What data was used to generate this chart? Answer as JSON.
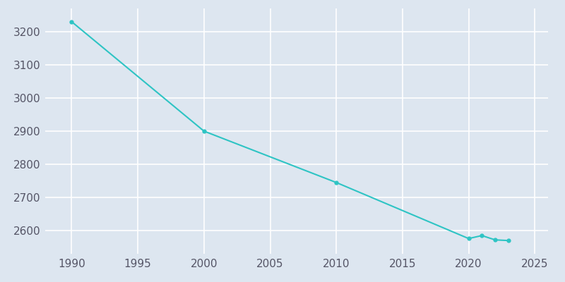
{
  "years": [
    1990,
    2000,
    2010,
    2020,
    2021,
    2022,
    2023
  ],
  "population": [
    3230,
    2900,
    2745,
    2576,
    2585,
    2572,
    2570
  ],
  "line_color": "#2ec4c4",
  "marker_color": "#2ec4c4",
  "bg_color": "#dde6f0",
  "plot_bg_color": "#dde6f0",
  "grid_color": "#ffffff",
  "xlim": [
    1988,
    2026
  ],
  "ylim": [
    2530,
    3270
  ],
  "xticks": [
    1990,
    1995,
    2000,
    2005,
    2010,
    2015,
    2020,
    2025
  ],
  "yticks": [
    2600,
    2700,
    2800,
    2900,
    3000,
    3100,
    3200
  ],
  "marker_size": 3.5,
  "line_width": 1.5,
  "figsize": [
    8.0,
    4.0
  ],
  "dpi": 100,
  "tick_label_color": "#555566",
  "tick_label_size": 11
}
